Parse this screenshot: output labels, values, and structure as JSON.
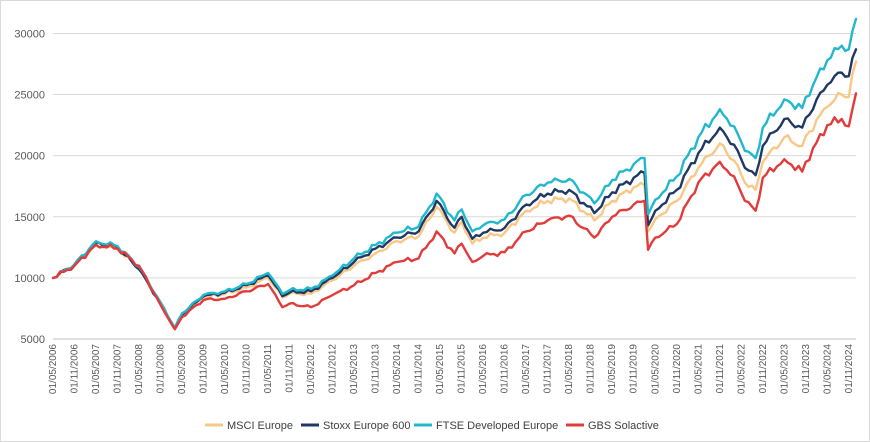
{
  "chart_data": {
    "type": "line",
    "title": "",
    "xlabel": "",
    "ylabel": "",
    "ylim": [
      5000,
      32000
    ],
    "yticks": [
      5000,
      10000,
      15000,
      20000,
      25000,
      30000
    ],
    "ytick_labels": [
      "5000",
      "10000",
      "15000",
      "20000",
      "25000",
      "30000"
    ],
    "x_range": [
      "2006-05",
      "2025-01"
    ],
    "xtick_labels": [
      "01/05/2006",
      "01/11/2006",
      "01/05/2007",
      "01/11/2007",
      "01/05/2008",
      "01/11/2008",
      "01/05/2009",
      "01/11/2009",
      "01/05/2010",
      "01/11/2010",
      "01/05/2011",
      "01/11/2011",
      "01/05/2012",
      "01/11/2012",
      "01/05/2013",
      "01/11/2013",
      "01/05/2014",
      "01/11/2014",
      "01/05/2015",
      "01/11/2015",
      "01/05/2016",
      "01/11/2016",
      "01/05/2017",
      "01/11/2017",
      "01/05/2018",
      "01/11/2018",
      "01/05/2019",
      "01/11/2019",
      "01/05/2020",
      "01/11/2020",
      "01/05/2021",
      "01/11/2021",
      "01/05/2022",
      "01/11/2022",
      "01/05/2023",
      "01/11/2023",
      "01/05/2024",
      "01/11/2024"
    ],
    "grid": "horizontal",
    "legend_position": "bottom",
    "series": [
      {
        "name": "MSCI Europe",
        "color": "#f9c886",
        "points": [
          [
            "2006-05",
            10000
          ],
          [
            "2006-11",
            11000
          ],
          [
            "2007-05",
            12800
          ],
          [
            "2007-11",
            12400
          ],
          [
            "2008-05",
            10800
          ],
          [
            "2008-11",
            8000
          ],
          [
            "2009-03",
            5900
          ],
          [
            "2009-05",
            7000
          ],
          [
            "2009-11",
            8400
          ],
          [
            "2010-05",
            8700
          ],
          [
            "2010-11",
            9200
          ],
          [
            "2011-05",
            10000
          ],
          [
            "2011-09",
            8400
          ],
          [
            "2011-11",
            8700
          ],
          [
            "2012-05",
            8700
          ],
          [
            "2012-11",
            9800
          ],
          [
            "2013-05",
            11000
          ],
          [
            "2013-11",
            12000
          ],
          [
            "2014-05",
            13000
          ],
          [
            "2014-11",
            13400
          ],
          [
            "2015-04",
            15800
          ],
          [
            "2015-09",
            13700
          ],
          [
            "2015-11",
            14600
          ],
          [
            "2016-02",
            12800
          ],
          [
            "2016-05",
            13300
          ],
          [
            "2016-11",
            13700
          ],
          [
            "2017-05",
            15500
          ],
          [
            "2017-11",
            16300
          ],
          [
            "2018-05",
            16500
          ],
          [
            "2018-12",
            14700
          ],
          [
            "2019-05",
            16300
          ],
          [
            "2019-11",
            17400
          ],
          [
            "2020-02",
            17600
          ],
          [
            "2020-03",
            13800
          ],
          [
            "2020-05",
            14800
          ],
          [
            "2020-11",
            16300
          ],
          [
            "2021-05",
            19000
          ],
          [
            "2021-11",
            21000
          ],
          [
            "2022-03",
            19600
          ],
          [
            "2022-06",
            17800
          ],
          [
            "2022-09",
            17200
          ],
          [
            "2022-11",
            19500
          ],
          [
            "2023-05",
            21500
          ],
          [
            "2023-10",
            20800
          ],
          [
            "2023-11",
            21600
          ],
          [
            "2024-05",
            24000
          ],
          [
            "2024-09",
            25000
          ],
          [
            "2024-11",
            24800
          ],
          [
            "2025-01",
            27700
          ]
        ]
      },
      {
        "name": "Stoxx Europe 600",
        "color": "#1f3864",
        "points": [
          [
            "2006-05",
            10000
          ],
          [
            "2006-11",
            11100
          ],
          [
            "2007-05",
            12900
          ],
          [
            "2007-11",
            12500
          ],
          [
            "2008-05",
            10700
          ],
          [
            "2008-11",
            7900
          ],
          [
            "2009-03",
            5900
          ],
          [
            "2009-05",
            7000
          ],
          [
            "2009-11",
            8500
          ],
          [
            "2010-05",
            8800
          ],
          [
            "2010-11",
            9400
          ],
          [
            "2011-05",
            10200
          ],
          [
            "2011-09",
            8500
          ],
          [
            "2011-11",
            8800
          ],
          [
            "2012-05",
            8900
          ],
          [
            "2012-11",
            10000
          ],
          [
            "2013-05",
            11300
          ],
          [
            "2013-11",
            12400
          ],
          [
            "2014-05",
            13300
          ],
          [
            "2014-11",
            13800
          ],
          [
            "2015-04",
            16300
          ],
          [
            "2015-09",
            14100
          ],
          [
            "2015-11",
            15000
          ],
          [
            "2016-02",
            13200
          ],
          [
            "2016-05",
            13700
          ],
          [
            "2016-11",
            14100
          ],
          [
            "2017-05",
            16000
          ],
          [
            "2017-11",
            16900
          ],
          [
            "2018-05",
            17200
          ],
          [
            "2018-12",
            15300
          ],
          [
            "2019-05",
            17000
          ],
          [
            "2019-11",
            18200
          ],
          [
            "2020-02",
            18600
          ],
          [
            "2020-03",
            14300
          ],
          [
            "2020-05",
            15500
          ],
          [
            "2020-11",
            17200
          ],
          [
            "2021-05",
            20200
          ],
          [
            "2021-11",
            22300
          ],
          [
            "2022-03",
            20900
          ],
          [
            "2022-06",
            19000
          ],
          [
            "2022-09",
            18400
          ],
          [
            "2022-11",
            20800
          ],
          [
            "2023-05",
            23000
          ],
          [
            "2023-10",
            22300
          ],
          [
            "2023-11",
            23100
          ],
          [
            "2024-05",
            25800
          ],
          [
            "2024-09",
            26800
          ],
          [
            "2024-11",
            26500
          ],
          [
            "2025-01",
            28700
          ]
        ]
      },
      {
        "name": "FTSE Developed Europe",
        "color": "#21b8ce",
        "points": [
          [
            "2006-05",
            10000
          ],
          [
            "2006-11",
            11100
          ],
          [
            "2007-05",
            13000
          ],
          [
            "2007-11",
            12600
          ],
          [
            "2008-05",
            10900
          ],
          [
            "2008-11",
            8000
          ],
          [
            "2009-03",
            5900
          ],
          [
            "2009-05",
            7100
          ],
          [
            "2009-11",
            8600
          ],
          [
            "2010-05",
            8900
          ],
          [
            "2010-11",
            9500
          ],
          [
            "2011-05",
            10400
          ],
          [
            "2011-09",
            8700
          ],
          [
            "2011-11",
            9000
          ],
          [
            "2012-05",
            9100
          ],
          [
            "2012-11",
            10200
          ],
          [
            "2013-05",
            11600
          ],
          [
            "2013-11",
            12700
          ],
          [
            "2014-05",
            13700
          ],
          [
            "2014-11",
            14200
          ],
          [
            "2015-04",
            16900
          ],
          [
            "2015-09",
            14700
          ],
          [
            "2015-11",
            15600
          ],
          [
            "2016-02",
            13800
          ],
          [
            "2016-05",
            14300
          ],
          [
            "2016-11",
            14800
          ],
          [
            "2017-05",
            16800
          ],
          [
            "2017-11",
            17800
          ],
          [
            "2018-05",
            18100
          ],
          [
            "2018-12",
            16100
          ],
          [
            "2019-05",
            18000
          ],
          [
            "2019-11",
            19300
          ],
          [
            "2020-02",
            19800
          ],
          [
            "2020-03",
            15200
          ],
          [
            "2020-05",
            16400
          ],
          [
            "2020-11",
            18300
          ],
          [
            "2021-05",
            21500
          ],
          [
            "2021-11",
            23800
          ],
          [
            "2022-03",
            22400
          ],
          [
            "2022-06",
            20400
          ],
          [
            "2022-09",
            19800
          ],
          [
            "2022-11",
            22300
          ],
          [
            "2023-05",
            24600
          ],
          [
            "2023-10",
            23900
          ],
          [
            "2023-11",
            24800
          ],
          [
            "2024-05",
            27800
          ],
          [
            "2024-09",
            29000
          ],
          [
            "2024-11",
            28700
          ],
          [
            "2025-01",
            31200
          ]
        ]
      },
      {
        "name": "GBS Solactive",
        "color": "#e23b3b",
        "points": [
          [
            "2006-05",
            10000
          ],
          [
            "2006-11",
            11000
          ],
          [
            "2007-05",
            12700
          ],
          [
            "2007-11",
            12400
          ],
          [
            "2008-05",
            11000
          ],
          [
            "2008-11",
            7800
          ],
          [
            "2009-03",
            5800
          ],
          [
            "2009-05",
            6800
          ],
          [
            "2009-11",
            8200
          ],
          [
            "2010-05",
            8300
          ],
          [
            "2010-11",
            8900
          ],
          [
            "2011-05",
            9500
          ],
          [
            "2011-09",
            7600
          ],
          [
            "2011-11",
            7900
          ],
          [
            "2012-05",
            7600
          ],
          [
            "2012-11",
            8600
          ],
          [
            "2013-05",
            9400
          ],
          [
            "2013-11",
            10400
          ],
          [
            "2014-05",
            11300
          ],
          [
            "2014-11",
            11600
          ],
          [
            "2015-04",
            13800
          ],
          [
            "2015-09",
            12000
          ],
          [
            "2015-11",
            12800
          ],
          [
            "2016-02",
            11300
          ],
          [
            "2016-05",
            11800
          ],
          [
            "2016-11",
            12100
          ],
          [
            "2017-05",
            13800
          ],
          [
            "2017-11",
            14700
          ],
          [
            "2018-05",
            15100
          ],
          [
            "2018-12",
            13300
          ],
          [
            "2019-05",
            15000
          ],
          [
            "2019-11",
            16000
          ],
          [
            "2020-02",
            16300
          ],
          [
            "2020-03",
            12300
          ],
          [
            "2020-05",
            13300
          ],
          [
            "2020-11",
            14400
          ],
          [
            "2021-05",
            17800
          ],
          [
            "2021-11",
            19500
          ],
          [
            "2022-03",
            18300
          ],
          [
            "2022-06",
            16300
          ],
          [
            "2022-09",
            15500
          ],
          [
            "2022-11",
            18200
          ],
          [
            "2023-05",
            19700
          ],
          [
            "2023-10",
            18700
          ],
          [
            "2023-11",
            19500
          ],
          [
            "2024-05",
            22500
          ],
          [
            "2024-09",
            23000
          ],
          [
            "2024-11",
            22400
          ],
          [
            "2025-01",
            25100
          ]
        ]
      }
    ]
  }
}
